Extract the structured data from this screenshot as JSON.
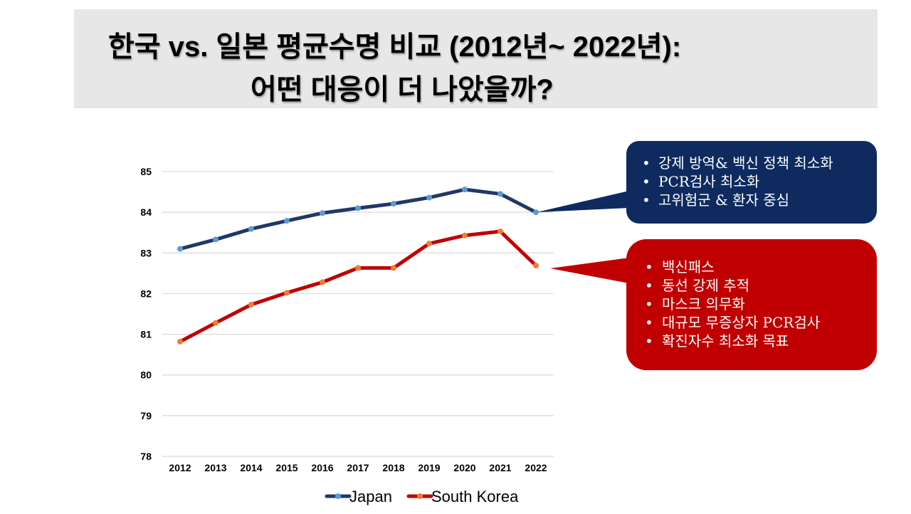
{
  "slide": {
    "title_line_1": "한국 vs. 일본 평균수명 비교 (2012년~ 2022년):",
    "title_line_2": "어떤 대응이 더 나았을까?"
  },
  "callouts": {
    "japan": {
      "color": "#0e2a5f",
      "items": [
        "강제 방역& 백신 정책 최소화",
        "PCR검사 최소화",
        "고위험군 & 환자 중심"
      ]
    },
    "korea": {
      "color": "#c00000",
      "items": [
        "백신패스",
        "동선 강제 추적",
        "마스크 의무화",
        "대규모 무증상자 PCR검사",
        "확진자수 최소화 목표"
      ]
    }
  },
  "chart_data": {
    "type": "line",
    "title": "",
    "xlabel": "",
    "ylabel": "",
    "x": [
      "2012",
      "2013",
      "2014",
      "2015",
      "2016",
      "2017",
      "2018",
      "2019",
      "2020",
      "2021",
      "2022"
    ],
    "ylim": [
      78,
      85
    ],
    "yticks": [
      "78",
      "79",
      "80",
      "81",
      "82",
      "83",
      "84",
      "85"
    ],
    "grid": true,
    "legend": "bottom",
    "series": [
      {
        "name": "Japan",
        "line_color": "#203864",
        "marker_color": "#5b9bd5",
        "values": [
          83.1,
          83.33,
          83.59,
          83.79,
          83.98,
          84.1,
          84.21,
          84.36,
          84.56,
          84.45,
          84.0
        ]
      },
      {
        "name": "South Korea",
        "line_color": "#c00000",
        "marker_color": "#ed7d31",
        "values": [
          80.82,
          81.28,
          81.73,
          82.02,
          82.28,
          82.63,
          82.63,
          83.23,
          83.43,
          83.53,
          82.69
        ]
      }
    ]
  }
}
